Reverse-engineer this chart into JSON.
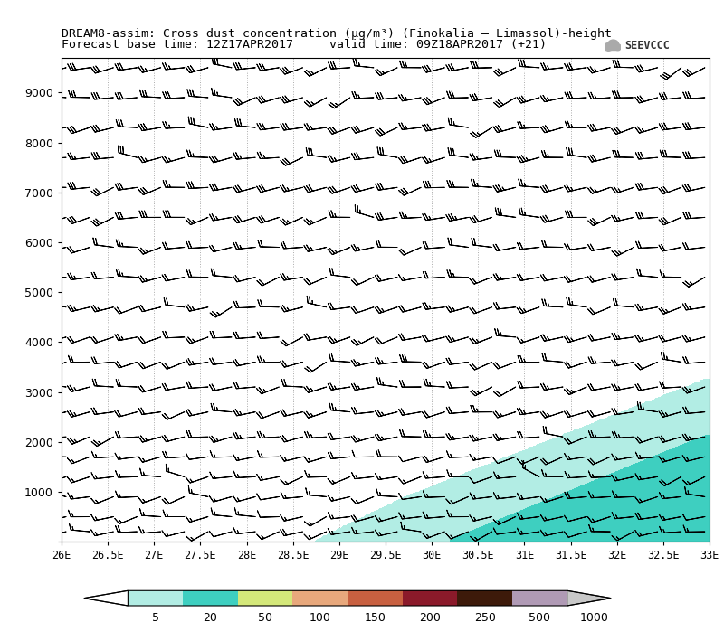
{
  "title_line1": "DREAM8-assim: Cross dust concentration (μg/m³) (Finokalia – Limassol)-height",
  "title_line2": "Forecast base time: 12Z17APR2017     valid time: 09Z18APR2017 (+21)",
  "xlabel_ticks": [
    "26E",
    "26.5E",
    "27E",
    "27.5E",
    "28E",
    "28.5E",
    "29E",
    "29.5E",
    "30E",
    "30.5E",
    "31E",
    "31.5E",
    "32E",
    "32.5E",
    "33E"
  ],
  "xlabel_vals": [
    26.0,
    26.5,
    27.0,
    27.5,
    28.0,
    28.5,
    29.0,
    29.5,
    30.0,
    30.5,
    31.0,
    31.5,
    32.0,
    32.5,
    33.0
  ],
  "yticks": [
    0,
    1000,
    2000,
    3000,
    4000,
    5000,
    6000,
    7000,
    8000,
    9000
  ],
  "ylim": [
    0,
    9700
  ],
  "xlim": [
    26.0,
    33.0
  ],
  "colorbar_levels": [
    5,
    20,
    50,
    100,
    150,
    200,
    250,
    500,
    1000
  ],
  "colorbar_colors": [
    "#b2ede4",
    "#3ecfc0",
    "#d4e87a",
    "#e8a87c",
    "#c86040",
    "#8b1a2a",
    "#3d1a0a",
    "#b09ab5"
  ],
  "bg_color": "#ffffff",
  "grid_color": "#888888",
  "barb_color": "#000000",
  "seevccc_text": "SEEVCCC",
  "barb_lon_count": 28,
  "barb_alt_levels": [
    200,
    500,
    900,
    1300,
    1700,
    2100,
    2600,
    3100,
    3600,
    4100,
    4700,
    5300,
    5900,
    6500,
    7100,
    7700,
    8300,
    8900,
    9500
  ],
  "wind_speed_low": 15,
  "wind_speed_mid": 22,
  "wind_speed_high": 28
}
